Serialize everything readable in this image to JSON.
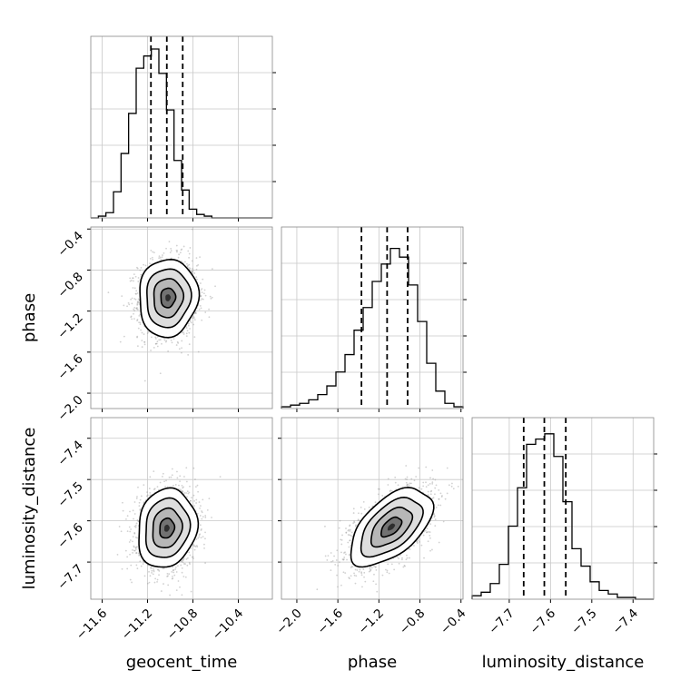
{
  "chart_data": {
    "type": "corner",
    "parameters": [
      {
        "key": "geocent_time",
        "label": "geocent_time",
        "range": [
          -11.7,
          -10.1
        ],
        "ticks": [
          -11.6,
          -11.2,
          -10.8,
          -10.4
        ],
        "tick_labels": [
          "−11.6",
          "−11.2",
          "−10.8",
          "−10.4"
        ],
        "quantiles": [
          -11.17,
          -11.03,
          -10.89
        ],
        "histogram": [
          0,
          0.01,
          0.03,
          0.15,
          0.37,
          0.6,
          0.86,
          0.93,
          0.97,
          0.83,
          0.62,
          0.33,
          0.16,
          0.05,
          0.02,
          0.01,
          0,
          0,
          0,
          0,
          0,
          0,
          0,
          0
        ]
      },
      {
        "key": "phase",
        "label": "phase",
        "range": [
          -2.15,
          -0.38
        ],
        "ticks": [
          -2.0,
          -1.6,
          -1.2,
          -0.8,
          -0.4
        ],
        "tick_labels": [
          "−2.0",
          "−1.6",
          "−1.2",
          "−0.8",
          "−0.4"
        ],
        "quantiles": [
          -1.37,
          -1.12,
          -0.92
        ],
        "histogram": [
          0.01,
          0.02,
          0.03,
          0.05,
          0.08,
          0.13,
          0.21,
          0.31,
          0.45,
          0.58,
          0.73,
          0.83,
          0.92,
          0.87,
          0.71,
          0.5,
          0.26,
          0.1,
          0.03,
          0.01
        ]
      },
      {
        "key": "luminosity_distance",
        "label": "luminosity_distance",
        "range": [
          -7.79,
          -7.35
        ],
        "ticks": [
          -7.7,
          -7.6,
          -7.5,
          -7.4
        ],
        "tick_labels": [
          "−7.7",
          "−7.6",
          "−7.5",
          "−7.4"
        ],
        "quantiles": [
          -7.665,
          -7.615,
          -7.563
        ],
        "histogram": [
          0.02,
          0.04,
          0.09,
          0.2,
          0.42,
          0.64,
          0.89,
          0.92,
          0.95,
          0.82,
          0.56,
          0.29,
          0.19,
          0.1,
          0.05,
          0.03,
          0.01,
          0.01,
          0,
          0
        ]
      }
    ],
    "pairs": [
      {
        "x": "geocent_time",
        "y": "phase",
        "center": [
          -11.02,
          -1.07
        ],
        "sigma": [
          0.13,
          0.19
        ],
        "correlation": 0.05
      },
      {
        "x": "geocent_time",
        "y": "luminosity_distance",
        "center": [
          -11.03,
          -7.618
        ],
        "sigma": [
          0.13,
          0.048
        ],
        "correlation": 0.12
      },
      {
        "x": "phase",
        "y": "luminosity_distance",
        "center": [
          -1.08,
          -7.615
        ],
        "sigma": [
          0.2,
          0.047
        ],
        "correlation": 0.55
      }
    ],
    "contour_levels_sigma": [
      0.5,
      1.0,
      1.5,
      2.0
    ],
    "grid": true,
    "quantiles_style": "dashed"
  }
}
